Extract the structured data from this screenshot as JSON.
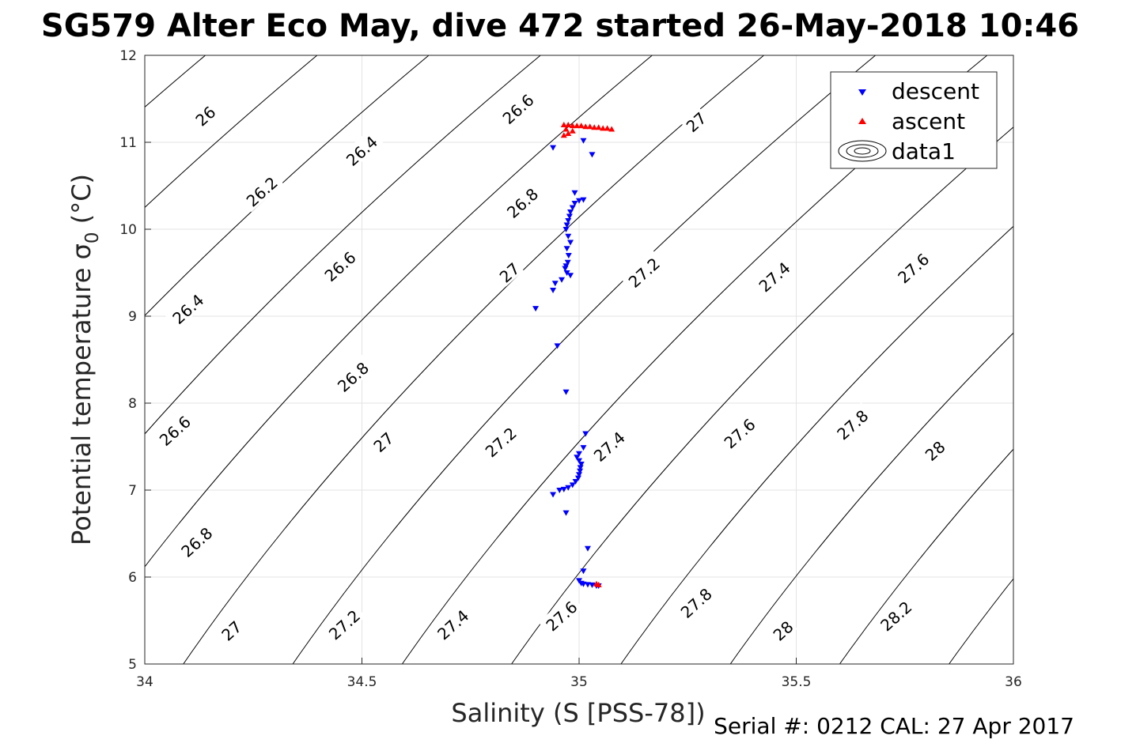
{
  "chart_data": {
    "type": "scatter",
    "title": "SG579 Alter Eco May, dive 472 started 26-May-2018 10:46",
    "xlabel": "Salinity (S [PSS-78])",
    "ylabel_main": "Potential temperature σ",
    "ylabel_sub": "0",
    "ylabel_unit": " (°C)",
    "xlim": [
      34,
      36
    ],
    "ylim": [
      5,
      12
    ],
    "xticks": [
      "34",
      "34.5",
      "35",
      "35.5",
      "36"
    ],
    "yticks": [
      "5",
      "6",
      "7",
      "8",
      "9",
      "10",
      "11",
      "12"
    ],
    "grid": true,
    "legend_position": "top-right",
    "legend": [
      "descent",
      "ascent",
      "data1"
    ],
    "footer": "Serial #: 0212  CAL: 27 Apr 2017",
    "series": [
      {
        "name": "descent",
        "marker": "triangle-down",
        "color": "#0000ff",
        "points": [
          [
            34.94,
            10.94
          ],
          [
            35.01,
            11.02
          ],
          [
            35.03,
            10.86
          ],
          [
            34.99,
            10.42
          ],
          [
            35.0,
            10.33
          ],
          [
            35.01,
            10.34
          ],
          [
            34.99,
            10.3
          ],
          [
            34.985,
            10.25
          ],
          [
            34.98,
            10.2
          ],
          [
            34.978,
            10.15
          ],
          [
            34.975,
            10.1
          ],
          [
            34.972,
            10.05
          ],
          [
            34.97,
            10.0
          ],
          [
            34.975,
            9.92
          ],
          [
            34.98,
            9.85
          ],
          [
            34.972,
            9.78
          ],
          [
            34.976,
            9.7
          ],
          [
            34.974,
            9.62
          ],
          [
            34.97,
            9.58
          ],
          [
            34.968,
            9.55
          ],
          [
            34.972,
            9.5
          ],
          [
            34.98,
            9.47
          ],
          [
            34.96,
            9.42
          ],
          [
            34.945,
            9.38
          ],
          [
            34.94,
            9.3
          ],
          [
            34.9,
            9.09
          ],
          [
            34.95,
            8.66
          ],
          [
            34.97,
            8.13
          ],
          [
            35.015,
            7.65
          ],
          [
            35.01,
            7.49
          ],
          [
            35.0,
            7.42
          ],
          [
            34.995,
            7.38
          ],
          [
            35.0,
            7.34
          ],
          [
            35.005,
            7.3
          ],
          [
            35.003,
            7.26
          ],
          [
            35.002,
            7.22
          ],
          [
            35.0,
            7.18
          ],
          [
            34.998,
            7.14
          ],
          [
            34.992,
            7.1
          ],
          [
            34.985,
            7.06
          ],
          [
            34.975,
            7.03
          ],
          [
            34.965,
            7.01
          ],
          [
            34.955,
            7.0
          ],
          [
            34.94,
            6.95
          ],
          [
            34.97,
            6.74
          ],
          [
            35.02,
            6.33
          ],
          [
            35.01,
            6.07
          ],
          [
            35.0,
            5.96
          ],
          [
            35.005,
            5.93
          ],
          [
            35.01,
            5.92
          ],
          [
            35.02,
            5.915
          ],
          [
            35.03,
            5.91
          ],
          [
            35.04,
            5.9
          ],
          [
            35.045,
            5.9
          ]
        ]
      },
      {
        "name": "ascent",
        "marker": "triangle-up",
        "color": "#ff0000",
        "points": [
          [
            34.965,
            11.2
          ],
          [
            34.975,
            11.2
          ],
          [
            34.985,
            11.19
          ],
          [
            34.995,
            11.19
          ],
          [
            35.005,
            11.19
          ],
          [
            35.015,
            11.18
          ],
          [
            35.025,
            11.18
          ],
          [
            35.035,
            11.17
          ],
          [
            35.045,
            11.17
          ],
          [
            35.055,
            11.16
          ],
          [
            35.065,
            11.16
          ],
          [
            35.075,
            11.15
          ],
          [
            34.97,
            11.15
          ],
          [
            34.975,
            11.1
          ],
          [
            34.965,
            11.08
          ],
          [
            34.985,
            11.13
          ],
          [
            35.045,
            5.91
          ],
          [
            35.04,
            5.92
          ]
        ]
      }
    ],
    "contours": [
      {
        "level": "26",
        "labels": [
          [
            34.14,
            11.3
          ]
        ]
      },
      {
        "level": "26.2",
        "labels": [
          [
            34.27,
            10.43
          ]
        ]
      },
      {
        "level": "26.4",
        "labels": [
          [
            34.1,
            9.08
          ],
          [
            34.5,
            10.9
          ]
        ]
      },
      {
        "level": "26.6",
        "labels": [
          [
            34.07,
            7.68
          ],
          [
            34.45,
            9.57
          ],
          [
            34.86,
            11.38
          ]
        ]
      },
      {
        "level": "26.8",
        "labels": [
          [
            34.12,
            6.4
          ],
          [
            34.48,
            8.3
          ],
          [
            34.87,
            10.3
          ]
        ]
      },
      {
        "level": "27",
        "labels": [
          [
            34.2,
            5.38
          ],
          [
            34.55,
            7.55
          ],
          [
            34.84,
            9.5
          ],
          [
            35.27,
            11.23
          ]
        ]
      },
      {
        "level": "27.2",
        "labels": [
          [
            34.46,
            5.45
          ],
          [
            34.82,
            7.55
          ],
          [
            35.15,
            9.5
          ]
        ]
      },
      {
        "level": "27.4",
        "labels": [
          [
            34.71,
            5.45
          ],
          [
            35.07,
            7.5
          ],
          [
            35.45,
            9.45
          ]
        ]
      },
      {
        "level": "27.6",
        "labels": [
          [
            34.96,
            5.55
          ],
          [
            35.37,
            7.65
          ],
          [
            35.77,
            9.55
          ]
        ]
      },
      {
        "level": "27.8",
        "labels": [
          [
            35.27,
            5.7
          ],
          [
            35.63,
            7.75
          ]
        ]
      },
      {
        "level": "28",
        "labels": [
          [
            35.47,
            5.38
          ],
          [
            35.82,
            7.45
          ]
        ]
      },
      {
        "level": "28.2",
        "labels": [
          [
            35.73,
            5.55
          ]
        ]
      }
    ]
  }
}
